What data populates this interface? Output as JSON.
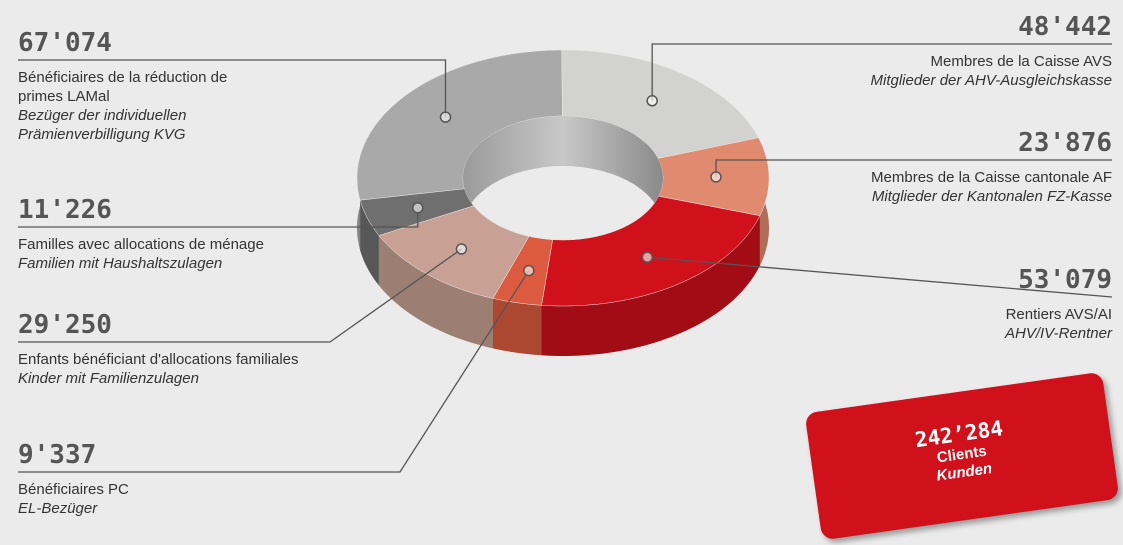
{
  "chart_data": {
    "type": "pie",
    "categories": [
      "Bénéficiaires de la réduction de primes LAMal",
      "Membres de la Caisse AVS",
      "Membres de la Caisse cantonale AF",
      "Rentiers AVS/AI",
      "Bénéficiaires PC",
      "Enfants bénéficiant d'allocations familiales",
      "Familles avec allocations de ménage"
    ],
    "categories_de": [
      "Bezüger der individuellen Prämienverbilligung KVG",
      "Mitglieder der AHV-Ausgleichskasse",
      "Mitglieder der Kantonalen FZ-Kasse",
      "AHV/IV-Rentner",
      "EL-Bezüger",
      "Kinder mit Familienzulagen",
      "Familien mit Haushaltszulagen"
    ],
    "values": [
      67074,
      48442,
      23876,
      53079,
      9337,
      29250,
      11226
    ],
    "value_labels": [
      "67'074",
      "48'442",
      "23'876",
      "53'079",
      "9'337",
      "29'250",
      "11'226"
    ],
    "colors": [
      "#a9a9a9",
      "#d2d2d1",
      "#e08b6f",
      "#d0101a",
      "#dc5b40",
      "#c9a194",
      "#6f6f6f"
    ],
    "total": 242284,
    "total_label": "242’284",
    "total_caption": [
      "Clients",
      "Kunden"
    ]
  }
}
